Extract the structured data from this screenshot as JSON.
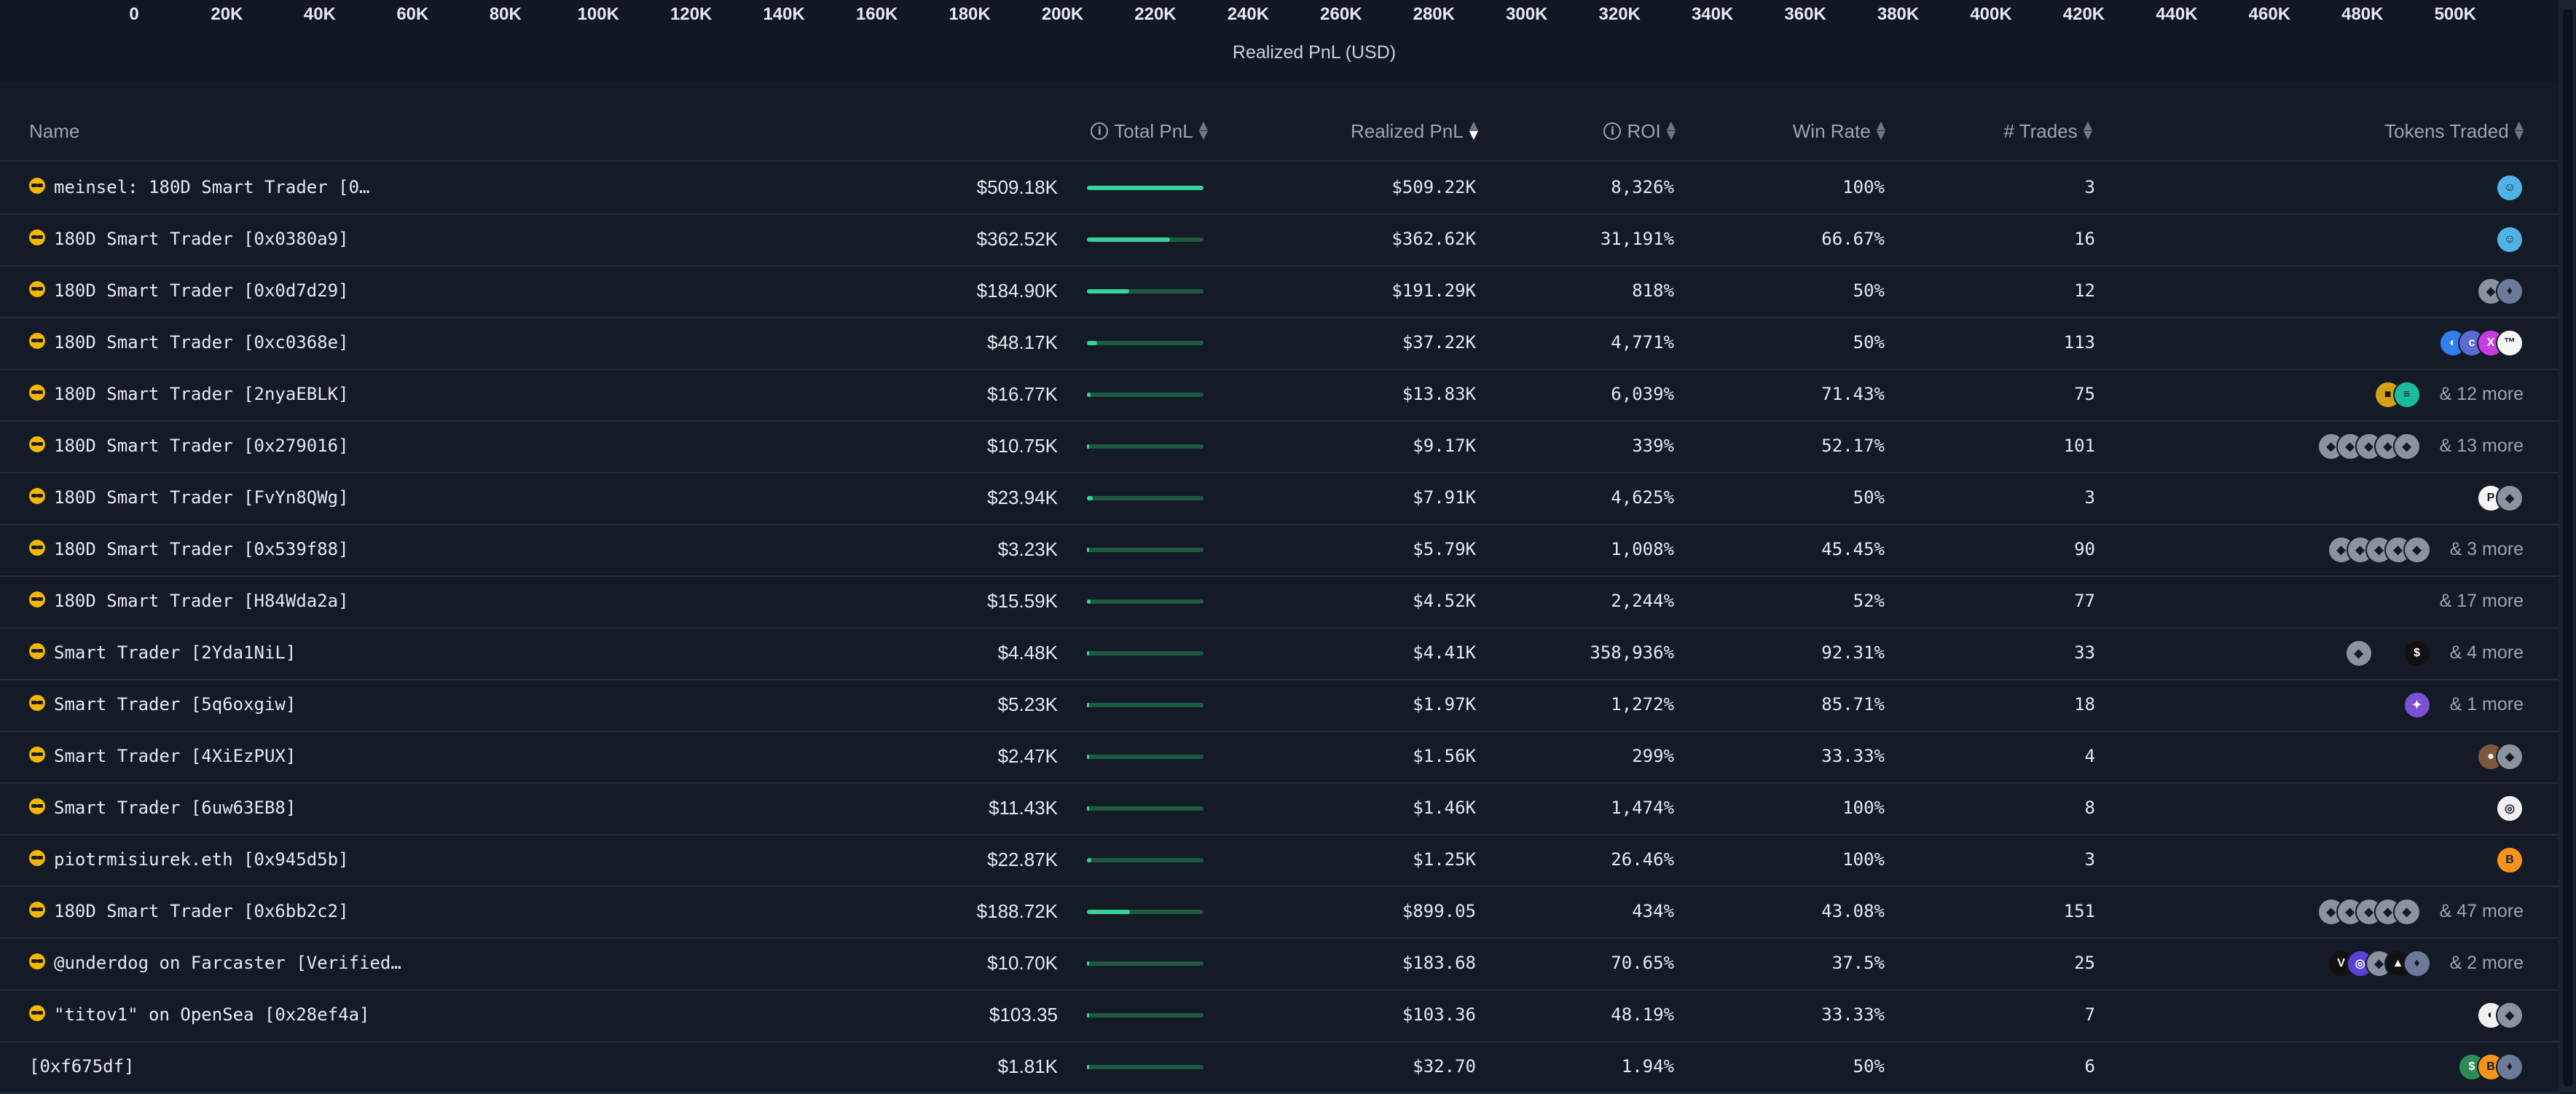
{
  "chart_axis": {
    "ticks": [
      "0",
      "20K",
      "40K",
      "60K",
      "80K",
      "100K",
      "120K",
      "140K",
      "160K",
      "180K",
      "200K",
      "220K",
      "240K",
      "260K",
      "280K",
      "300K",
      "320K",
      "340K",
      "360K",
      "380K",
      "400K",
      "420K",
      "440K",
      "460K",
      "480K",
      "500K"
    ],
    "title": "Realized PnL (USD)"
  },
  "table": {
    "columns": {
      "name": "Name",
      "total_pnl": "Total PnL",
      "realized_pnl": "Realized PnL",
      "roi": "ROI",
      "win_rate": "Win Rate",
      "trades": "# Trades",
      "tokens_traded": "Tokens Traded"
    },
    "sorted_by": "realized_pnl",
    "rows": [
      {
        "name": "meinsel: 180D Smart Trader [0…",
        "total_pnl": "$509.18K",
        "pnl_fraction": 1.0,
        "realized_pnl": "$509.22K",
        "roi": "8,326%",
        "win_rate": "100%",
        "trades": "3",
        "tokens": [
          {
            "icon": "smiley-token-icon",
            "color": "#4fb3e8",
            "glyph": "☺"
          }
        ],
        "more": ""
      },
      {
        "name": "180D Smart Trader [0x0380a9]",
        "total_pnl": "$362.52K",
        "pnl_fraction": 0.71,
        "realized_pnl": "$362.62K",
        "roi": "31,191%",
        "win_rate": "66.67%",
        "trades": "16",
        "tokens": [
          {
            "icon": "smiley-token-icon",
            "color": "#4fb3e8",
            "glyph": "☺"
          }
        ],
        "more": ""
      },
      {
        "name": "180D Smart Trader [0x0d7d29]",
        "total_pnl": "$184.90K",
        "pnl_fraction": 0.36,
        "realized_pnl": "$191.29K",
        "roi": "818%",
        "win_rate": "50%",
        "trades": "12",
        "tokens": [
          {
            "icon": "generic-token-icon",
            "color": "#8b93a1",
            "glyph": "◆"
          },
          {
            "icon": "ethereum-token-icon",
            "color": "#6b7a99",
            "glyph": "♦"
          }
        ],
        "more": ""
      },
      {
        "name": "180D Smart Trader [0xc0368e]",
        "total_pnl": "$48.17K",
        "pnl_fraction": 0.09,
        "realized_pnl": "$37.22K",
        "roi": "4,771%",
        "win_rate": "50%",
        "trades": "113",
        "tokens": [
          {
            "icon": "blue-token-icon",
            "color": "#2f80ed",
            "glyph": "◐"
          },
          {
            "icon": "cc-token-icon",
            "color": "#5b6bd6",
            "glyph": "c"
          },
          {
            "icon": "x-token-icon",
            "color": "#c73ee0",
            "glyph": "X"
          },
          {
            "icon": "tm-token-icon",
            "color": "#f5f5f5",
            "glyph": "™"
          }
        ],
        "more": ""
      },
      {
        "name": "180D Smart Trader [2nyaEBLK]",
        "total_pnl": "$16.77K",
        "pnl_fraction": 0.03,
        "realized_pnl": "$13.83K",
        "roi": "6,039%",
        "win_rate": "71.43%",
        "trades": "75",
        "tokens": [
          {
            "icon": "gold-token-icon",
            "color": "#d4a017",
            "glyph": "■"
          },
          {
            "icon": "teal-token-icon",
            "color": "#1abc9c",
            "glyph": "≡"
          }
        ],
        "more": "& 12 more"
      },
      {
        "name": "180D Smart Trader [0x279016]",
        "total_pnl": "$10.75K",
        "pnl_fraction": 0.02,
        "realized_pnl": "$9.17K",
        "roi": "339%",
        "win_rate": "52.17%",
        "trades": "101",
        "tokens": [
          {
            "icon": "generic-token-icon",
            "color": "#8b93a1",
            "glyph": "◆"
          },
          {
            "icon": "generic-token-icon",
            "color": "#8b93a1",
            "glyph": "◆"
          },
          {
            "icon": "generic-token-icon",
            "color": "#8b93a1",
            "glyph": "◆"
          },
          {
            "icon": "generic-token-icon",
            "color": "#8b93a1",
            "glyph": "◆"
          },
          {
            "icon": "generic-token-icon",
            "color": "#8b93a1",
            "glyph": "◆"
          }
        ],
        "more": "& 13 more"
      },
      {
        "name": "180D Smart Trader [FvYn8QWg]",
        "total_pnl": "$23.94K",
        "pnl_fraction": 0.05,
        "realized_pnl": "$7.91K",
        "roi": "4,625%",
        "win_rate": "50%",
        "trades": "3",
        "tokens": [
          {
            "icon": "p-token-icon",
            "color": "#f5f5f5",
            "glyph": "P"
          },
          {
            "icon": "generic-token-icon",
            "color": "#8b93a1",
            "glyph": "◆"
          }
        ],
        "more": ""
      },
      {
        "name": "180D Smart Trader [0x539f88]",
        "total_pnl": "$3.23K",
        "pnl_fraction": 0.01,
        "realized_pnl": "$5.79K",
        "roi": "1,008%",
        "win_rate": "45.45%",
        "trades": "90",
        "tokens": [
          {
            "icon": "generic-token-icon",
            "color": "#8b93a1",
            "glyph": "◆"
          },
          {
            "icon": "generic-token-icon",
            "color": "#8b93a1",
            "glyph": "◆"
          },
          {
            "icon": "generic-token-icon",
            "color": "#8b93a1",
            "glyph": "◆"
          },
          {
            "icon": "generic-token-icon",
            "color": "#8b93a1",
            "glyph": "◆"
          },
          {
            "icon": "generic-token-icon",
            "color": "#8b93a1",
            "glyph": "◆"
          }
        ],
        "more": "& 3 more"
      },
      {
        "name": "180D Smart Trader [H84Wda2a]",
        "total_pnl": "$15.59K",
        "pnl_fraction": 0.03,
        "realized_pnl": "$4.52K",
        "roi": "2,244%",
        "win_rate": "52%",
        "trades": "77",
        "tokens": [],
        "more": "& 17 more"
      },
      {
        "name": "Smart Trader [2Yda1NiL]",
        "total_pnl": "$4.48K",
        "pnl_fraction": 0.01,
        "realized_pnl": "$4.41K",
        "roi": "358,936%",
        "win_rate": "92.31%",
        "trades": "33",
        "tokens": [
          {
            "icon": "generic-token-icon",
            "color": "#8b93a1",
            "glyph": "◆"
          },
          {
            "icon": "s-token-icon",
            "color": "#111111",
            "glyph": "$",
            "gap": true
          }
        ],
        "more": "& 4 more"
      },
      {
        "name": "Smart Trader [5q6oxgiw]",
        "total_pnl": "$5.23K",
        "pnl_fraction": 0.01,
        "realized_pnl": "$1.97K",
        "roi": "1,272%",
        "win_rate": "85.71%",
        "trades": "18",
        "tokens": [
          {
            "icon": "purple-token-icon",
            "color": "#7b4fd6",
            "glyph": "✦"
          }
        ],
        "more": "& 1 more"
      },
      {
        "name": "Smart Trader [4XiEzPUX]",
        "total_pnl": "$2.47K",
        "pnl_fraction": 0.005,
        "realized_pnl": "$1.56K",
        "roi": "299%",
        "win_rate": "33.33%",
        "trades": "4",
        "tokens": [
          {
            "icon": "brown-token-icon",
            "color": "#7a5a3a",
            "glyph": "●"
          },
          {
            "icon": "generic-token-icon",
            "color": "#8b93a1",
            "glyph": "◆"
          }
        ],
        "more": ""
      },
      {
        "name": "Smart Trader [6uw63EB8]",
        "total_pnl": "$11.43K",
        "pnl_fraction": 0.02,
        "realized_pnl": "$1.46K",
        "roi": "1,474%",
        "win_rate": "100%",
        "trades": "8",
        "tokens": [
          {
            "icon": "white-token-icon",
            "color": "#f0f0f0",
            "glyph": "◎"
          }
        ],
        "more": ""
      },
      {
        "name": "piotrmisiurek.eth [0x945d5b]",
        "total_pnl": "$22.87K",
        "pnl_fraction": 0.04,
        "realized_pnl": "$1.25K",
        "roi": "26.46%",
        "win_rate": "100%",
        "trades": "3",
        "tokens": [
          {
            "icon": "bitcoin-token-icon",
            "color": "#f7931a",
            "glyph": "B"
          }
        ],
        "more": ""
      },
      {
        "name": "180D Smart Trader [0x6bb2c2]",
        "total_pnl": "$188.72K",
        "pnl_fraction": 0.37,
        "realized_pnl": "$899.05",
        "roi": "434%",
        "win_rate": "43.08%",
        "trades": "151",
        "tokens": [
          {
            "icon": "generic-token-icon",
            "color": "#8b93a1",
            "glyph": "◆"
          },
          {
            "icon": "generic-token-icon",
            "color": "#8b93a1",
            "glyph": "◆"
          },
          {
            "icon": "generic-token-icon",
            "color": "#8b93a1",
            "glyph": "◆"
          },
          {
            "icon": "generic-token-icon",
            "color": "#8b93a1",
            "glyph": "◆"
          },
          {
            "icon": "generic-token-icon",
            "color": "#8b93a1",
            "glyph": "◆"
          }
        ],
        "more": "& 47 more"
      },
      {
        "name": "@underdog on Farcaster [Verified…",
        "total_pnl": "$10.70K",
        "pnl_fraction": 0.02,
        "realized_pnl": "$183.68",
        "roi": "70.65%",
        "win_rate": "37.5%",
        "trades": "25",
        "tokens": [
          {
            "icon": "v-token-icon",
            "color": "#111111",
            "glyph": "V"
          },
          {
            "icon": "violet-token-icon",
            "color": "#5b3fd6",
            "glyph": "◎"
          },
          {
            "icon": "generic-token-icon",
            "color": "#8b93a1",
            "glyph": "◆"
          },
          {
            "icon": "mountain-token-icon",
            "color": "#111111",
            "glyph": "▲"
          },
          {
            "icon": "ethereum-token-icon",
            "color": "#6b7a99",
            "glyph": "♦"
          }
        ],
        "more": "& 2 more"
      },
      {
        "name": "\"titov1\" on OpenSea [0x28ef4a]",
        "total_pnl": "$103.35",
        "pnl_fraction": 0.0,
        "realized_pnl": "$103.36",
        "roi": "48.19%",
        "win_rate": "33.33%",
        "trades": "7",
        "tokens": [
          {
            "icon": "white-token-icon",
            "color": "#f0f0f0",
            "glyph": "◐"
          },
          {
            "icon": "generic-token-icon",
            "color": "#8b93a1",
            "glyph": "◆"
          }
        ],
        "more": ""
      },
      {
        "name": "[0xf675df]",
        "total_pnl": "$1.81K",
        "pnl_fraction": 0.004,
        "realized_pnl": "$32.70",
        "roi": "1.94%",
        "win_rate": "50%",
        "trades": "6",
        "tokens": [
          {
            "icon": "green-token-icon",
            "color": "#2e8b57",
            "glyph": "$"
          },
          {
            "icon": "bitcoin-token-icon",
            "color": "#f7931a",
            "glyph": "B"
          },
          {
            "icon": "ethereum-token-icon",
            "color": "#6b7a99",
            "glyph": "♦"
          }
        ],
        "more": "",
        "no_icon": true
      }
    ]
  }
}
